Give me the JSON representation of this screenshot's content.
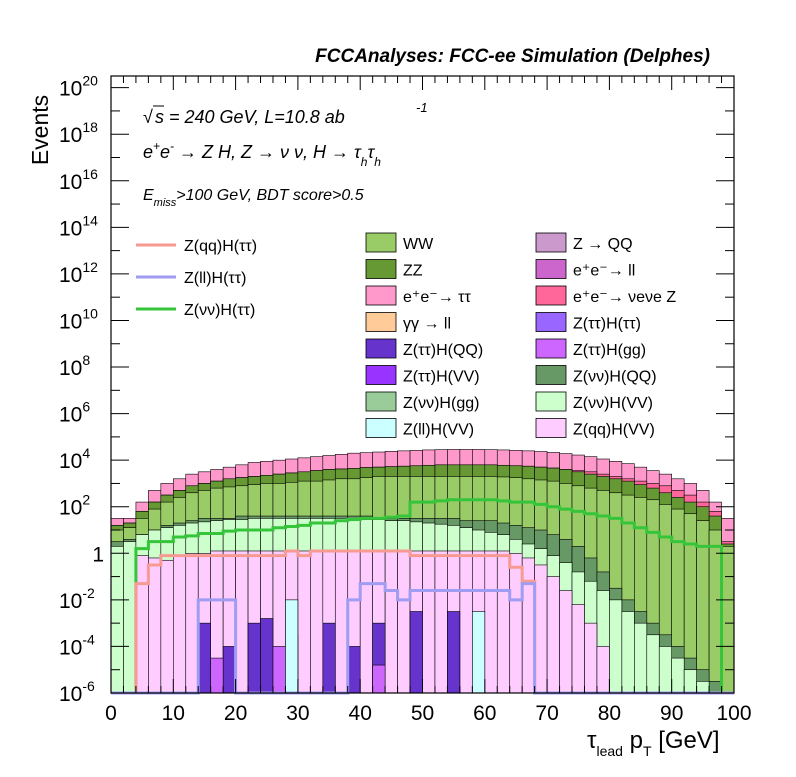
{
  "chart_data": {
    "type": "histogram",
    "title": "FCCAnalyses: FCC-ee Simulation (Delphes)",
    "xlabel": "τ_lead p_T [GeV]",
    "ylabel": "Events",
    "xlim": [
      0,
      100
    ],
    "ylim_log10": [
      -6,
      20.5
    ],
    "yscale": "log",
    "grid": false,
    "legend_position": "top",
    "x_ticks": [
      "0",
      "10",
      "20",
      "30",
      "40",
      "50",
      "60",
      "70",
      "80",
      "90",
      "100"
    ],
    "y_ticks": [
      {
        "mant": "10",
        "exp": "-6"
      },
      {
        "mant": "10",
        "exp": "-4"
      },
      {
        "mant": "10",
        "exp": "-2"
      },
      {
        "mant": "1",
        "exp": ""
      },
      {
        "mant": "10",
        "exp": "2"
      },
      {
        "mant": "10",
        "exp": "4"
      },
      {
        "mant": "10",
        "exp": "6"
      },
      {
        "mant": "10",
        "exp": "8"
      },
      {
        "mant": "10",
        "exp": "10"
      },
      {
        "mant": "10",
        "exp": "12"
      },
      {
        "mant": "10",
        "exp": "14"
      },
      {
        "mant": "10",
        "exp": "16"
      },
      {
        "mant": "10",
        "exp": "18"
      },
      {
        "mant": "10",
        "exp": "20"
      }
    ],
    "annotations": {
      "sqrt": "√",
      "energy": "s = 240 GeV, L=10.8 ab",
      "energy_exp": "-1",
      "process": "e⁺e⁻ → Z H, Z → νν, H → τhτh",
      "selection": "E_miss>100 GeV, BDT score>0.5"
    },
    "line_legend": [
      {
        "name": "Z(qq)H(ττ)",
        "color": "#f79a92"
      },
      {
        "name": "Z(ll)H(ττ)",
        "color": "#9f9cf1"
      },
      {
        "name": "Z(νν)H(ττ)",
        "color": "#36c43a"
      }
    ],
    "stack_legend": [
      {
        "name": "WW",
        "color": "#99cc66"
      },
      {
        "name": "Z → QQ",
        "color": "#cc99cc"
      },
      {
        "name": "ZZ",
        "color": "#669933"
      },
      {
        "name": "e⁺e⁻→ ll",
        "color": "#cc66cc"
      },
      {
        "name": "e⁺e⁻→ ττ",
        "color": "#ff99cc"
      },
      {
        "name": "e⁺e⁻→ νeνe Z",
        "color": "#ff6699"
      },
      {
        "name": "γγ → ll",
        "color": "#ffcc99"
      },
      {
        "name": "Z(ττ)H(ττ)",
        "color": "#9966ff"
      },
      {
        "name": "Z(ττ)H(QQ)",
        "color": "#6633cc"
      },
      {
        "name": "Z(ττ)H(gg)",
        "color": "#cc66ff"
      },
      {
        "name": "Z(ττ)H(VV)",
        "color": "#9933ff"
      },
      {
        "name": "Z(νν)H(QQ)",
        "color": "#669966"
      },
      {
        "name": "Z(νν)H(gg)",
        "color": "#99cc99"
      },
      {
        "name": "Z(νν)H(VV)",
        "color": "#ccffcc"
      },
      {
        "name": "Z(ll)H(VV)",
        "color": "#ccffff"
      },
      {
        "name": "Z(qq)H(VV)",
        "color": "#ffccff"
      }
    ],
    "bin_width": 2,
    "stack_layers": [
      {
        "name": "e⁺e⁻→ ττ",
        "color": "#ff99cc",
        "log_top": [
          1.5,
          1.5,
          2.2,
          2.7,
          3,
          3.2,
          3.4,
          3.5,
          3.6,
          3.7,
          3.8,
          3.9,
          3.95,
          4,
          4.05,
          4.1,
          4.15,
          4.2,
          4.25,
          4.3,
          4.32,
          4.35,
          4.38,
          4.4,
          4.42,
          4.44,
          4.45,
          4.46,
          4.46,
          4.46,
          4.45,
          4.44,
          4.42,
          4.4,
          4.37,
          4.33,
          4.28,
          4.22,
          4.15,
          4.05,
          3.95,
          3.85,
          3.7,
          3.55,
          3.4,
          3.2,
          3,
          2.7,
          2.2,
          1.5
        ]
      },
      {
        "name": "e⁺e⁻→ νeνe Z",
        "color": "#ff6699",
        "log_top": [
          1.2,
          1.3,
          1.8,
          2.2,
          2.5,
          2.7,
          2.9,
          3.0,
          3.1,
          3.2,
          3.25,
          3.3,
          3.35,
          3.4,
          3.45,
          3.5,
          3.55,
          3.6,
          3.62,
          3.65,
          3.68,
          3.7,
          3.72,
          3.74,
          3.76,
          3.78,
          3.8,
          3.8,
          3.8,
          3.8,
          3.8,
          3.78,
          3.76,
          3.74,
          3.7,
          3.66,
          3.6,
          3.55,
          3.5,
          3.4,
          3.3,
          3.2,
          3.1,
          3,
          2.9,
          2.7,
          2.5,
          2.2,
          1.8,
          0.5
        ]
      },
      {
        "name": "ZZ",
        "color": "#669933",
        "log_top": [
          1.2,
          1.3,
          1.8,
          2.2,
          2.5,
          2.7,
          2.9,
          3.0,
          3.1,
          3.2,
          3.25,
          3.3,
          3.35,
          3.4,
          3.45,
          3.5,
          3.55,
          3.6,
          3.62,
          3.65,
          3.68,
          3.7,
          3.72,
          3.74,
          3.76,
          3.78,
          3.8,
          3.8,
          3.8,
          3.8,
          3.8,
          3.78,
          3.76,
          3.74,
          3.7,
          3.66,
          3.6,
          3.5,
          3.4,
          3.3,
          3.2,
          3.1,
          2.95,
          2.8,
          2.6,
          2.4,
          2.2,
          2.0,
          1.6,
          0.4
        ]
      },
      {
        "name": "WW",
        "color": "#99cc66",
        "log_top": [
          1.0,
          1.1,
          1.5,
          1.9,
          2.2,
          2.4,
          2.6,
          2.7,
          2.8,
          2.85,
          2.9,
          2.95,
          3.0,
          3.0,
          3.05,
          3.1,
          3.1,
          3.15,
          3.2,
          3.2,
          3.25,
          3.3,
          3.3,
          3.3,
          3.3,
          3.3,
          3.3,
          3.3,
          3.3,
          3.3,
          3.3,
          3.28,
          3.25,
          3.2,
          3.15,
          3.1,
          3.0,
          2.9,
          2.8,
          2.7,
          2.6,
          2.5,
          2.4,
          2.3,
          2.1,
          1.9,
          1.7,
          1.4,
          1.0,
          0.3
        ]
      },
      {
        "name": "Z(νν)H(QQ)",
        "color": "#669966",
        "log_top": [
          0.5,
          0.6,
          0.8,
          1.0,
          1.2,
          1.3,
          1.4,
          1.5,
          1.5,
          1.5,
          1.6,
          1.6,
          1.6,
          1.6,
          1.6,
          1.6,
          1.6,
          1.6,
          1.6,
          1.6,
          1.6,
          1.5,
          1.5,
          1.5,
          1.5,
          1.5,
          1.5,
          1.5,
          1.4,
          1.4,
          1.4,
          1.3,
          1.2,
          1.1,
          1.0,
          0.8,
          0.6,
          0.3,
          -0.2,
          -0.8,
          -1.5,
          -2,
          -2.5,
          -3,
          -3.5,
          -4,
          -4.5,
          -5,
          -5.5,
          -6
        ]
      },
      {
        "name": "Z(νν)H(VV)",
        "color": "#ccffcc",
        "log_top": [
          0.3,
          0.5,
          0.8,
          1.0,
          1.1,
          1.2,
          1.3,
          1.35,
          1.4,
          1.45,
          1.45,
          1.5,
          1.5,
          1.5,
          1.5,
          1.5,
          1.5,
          1.5,
          1.5,
          1.5,
          1.45,
          1.45,
          1.4,
          1.4,
          1.35,
          1.3,
          1.25,
          1.2,
          1.1,
          1.0,
          0.9,
          0.8,
          0.6,
          0.4,
          0.2,
          -0.1,
          -0.4,
          -0.8,
          -1.2,
          -1.6,
          -2,
          -2.5,
          -3,
          -3.5,
          -4,
          -4.5,
          -5,
          -5.5,
          -6,
          -6
        ]
      },
      {
        "name": "Z(qq)H(VV)",
        "color": "#ffccff",
        "log_top": [
          -6,
          -6,
          -0.1,
          -0.2,
          -0.3,
          -0.1,
          0,
          0,
          0.1,
          0.1,
          0.1,
          0.1,
          0.1,
          0.1,
          0.1,
          0.1,
          0.1,
          0.1,
          0.1,
          0.1,
          0.1,
          0.1,
          0.1,
          0.1,
          0.1,
          0.1,
          0.1,
          0.1,
          0.1,
          0.1,
          0.1,
          0.1,
          0,
          -0.2,
          -0.5,
          -1,
          -1.6,
          -2.2,
          -3,
          -4,
          -6,
          -6,
          -6,
          -6,
          -6,
          -6,
          -6,
          -6,
          -6,
          -6
        ]
      },
      {
        "name": "Z(ττ)H(QQ)",
        "color": "#6633cc",
        "log_top": [
          -6,
          -6,
          -6,
          -6,
          -6,
          -6,
          -6,
          -3,
          -6,
          -4,
          -6,
          -3,
          -2.8,
          -6,
          -3.5,
          -6,
          -6,
          -3,
          -6,
          -4,
          -6,
          -3,
          -6,
          -6,
          -2.5,
          -6,
          -6,
          -2.5,
          -6,
          -6,
          -6,
          -6,
          -6,
          -6,
          -6,
          -6,
          -6,
          -6,
          -6,
          -6,
          -6,
          -6,
          -6,
          -6,
          -6,
          -6,
          -6,
          -6,
          -6,
          -6
        ]
      },
      {
        "name": "Z(ττ)H(gg)",
        "color": "#cc66ff",
        "log_top": [
          -6,
          -6,
          -6,
          -6,
          -6,
          -6,
          -6,
          -6,
          -4.5,
          -6,
          -6,
          -6,
          -6,
          -4,
          -6,
          -6,
          -6,
          -6,
          -6,
          -6,
          -6,
          -4.8,
          -6,
          -6,
          -6,
          -6,
          -6,
          -6,
          -6,
          -6,
          -6,
          -6,
          -6,
          -6,
          -6,
          -6,
          -6,
          -6,
          -6,
          -6,
          -6,
          -6,
          -6,
          -6,
          -6,
          -6,
          -6,
          -6,
          -6,
          -6
        ]
      },
      {
        "name": "Z(ll)H(VV)",
        "color": "#ccffff",
        "log_top": [
          -6,
          -6,
          -6,
          -6,
          -6,
          -6,
          -6,
          -6,
          -6,
          -6,
          -6,
          -6,
          -6,
          -6,
          -2,
          -6,
          -6,
          -6,
          -6,
          -6,
          -6,
          -6,
          -6,
          -6,
          -6,
          -6,
          -6,
          -6,
          -6,
          -2.5,
          -6,
          -6,
          -6,
          -6,
          -6,
          -6,
          -6,
          -6,
          -6,
          -6,
          -6,
          -6,
          -6,
          -6,
          -6,
          -6,
          -6,
          -6,
          -6,
          -6
        ]
      }
    ],
    "signal_lines": [
      {
        "name": "Z(νν)H(ττ)",
        "color": "#36c43a",
        "log_y": [
          -6,
          -6,
          0.2,
          0.5,
          0.5,
          0.7,
          0.75,
          0.85,
          0.85,
          0.95,
          1.0,
          1.0,
          1.0,
          1.1,
          1.15,
          1.2,
          1.3,
          1.3,
          1.4,
          1.45,
          1.5,
          1.5,
          1.55,
          1.6,
          2.2,
          2.2,
          2.25,
          2.3,
          2.3,
          2.3,
          2.3,
          2.25,
          2.2,
          2.2,
          2.1,
          2.0,
          1.9,
          1.8,
          1.7,
          1.6,
          1.5,
          1.3,
          1.1,
          0.9,
          0.7,
          0.5,
          0.4,
          0.3,
          0.3,
          -6
        ]
      },
      {
        "name": "Z(qq)H(ττ)",
        "color": "#f79a92",
        "log_y": [
          -6,
          -6,
          -1.3,
          -0.5,
          -0.1,
          -0.1,
          -0.1,
          -0.1,
          -0.1,
          -0.1,
          -0.1,
          -0.1,
          -0.1,
          -0.1,
          0.1,
          -0.1,
          0.1,
          0.1,
          0.1,
          0.1,
          0.1,
          0.1,
          0.1,
          0.1,
          -0.1,
          -0.1,
          -0.1,
          -0.1,
          -0.1,
          -0.1,
          -0.1,
          -0.1,
          -0.6,
          -1.2,
          -6,
          -6,
          -6,
          -6,
          -6,
          -6,
          -6,
          -6,
          -6,
          -6,
          -6,
          -6,
          -6,
          -6,
          -6,
          -6
        ]
      },
      {
        "name": "Z(ll)H(ττ)",
        "color": "#9f9cf1",
        "log_y": [
          -6,
          -6,
          -6,
          -6,
          -6,
          -6,
          -6,
          -2,
          -2,
          -2,
          -6,
          -6,
          -6,
          -6,
          -6,
          -6,
          -6,
          -6,
          -6,
          -2,
          -1.3,
          -1.3,
          -1.6,
          -2,
          -1.6,
          -1.6,
          -1.6,
          -1.6,
          -1.6,
          -1.6,
          -1.6,
          -1.6,
          -2,
          -1.3,
          -6,
          -6,
          -6,
          -6,
          -6,
          -6,
          -6,
          -6,
          -6,
          -6,
          -6,
          -6,
          -6,
          -6,
          -6,
          -6
        ]
      }
    ]
  }
}
